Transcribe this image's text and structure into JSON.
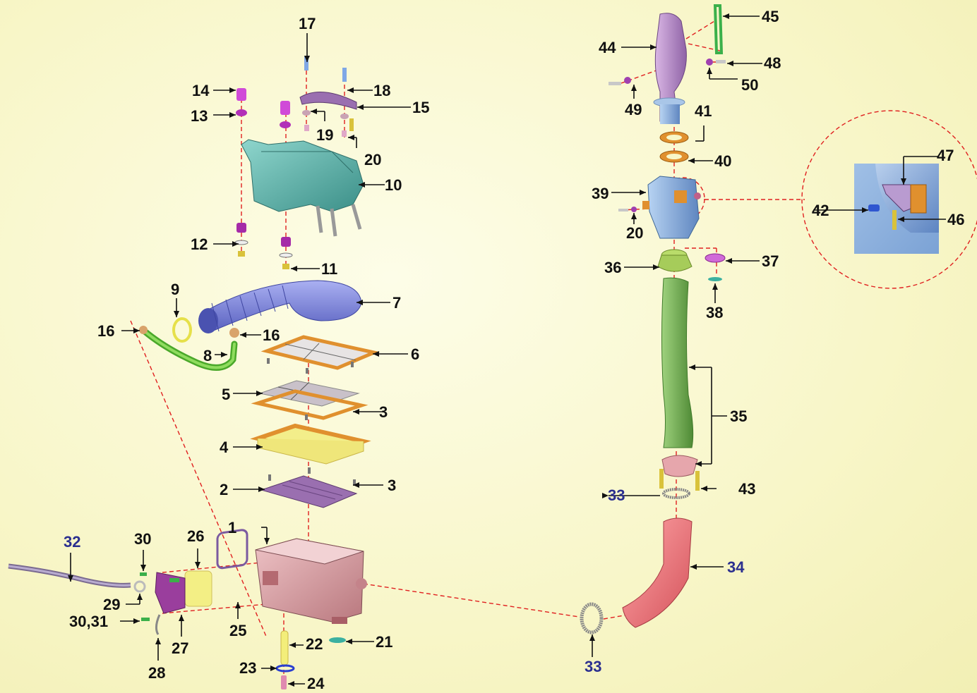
{
  "colors": {
    "background": "#f8f6c8",
    "callout_text": "#111111",
    "callout_blue": "#2b2f8f",
    "dashed_guide": "#e02020",
    "airbox": "#d9a3a8",
    "cover": "#5fb7ae",
    "duct_blue": "#7f86e0",
    "hose_green": "#6cbf3a",
    "frame_orange": "#e0902e",
    "filter_yellow": "#f3ee8a",
    "tray_purple": "#9a6fb0",
    "snorkel_green": "#6aa34a",
    "intake_pink": "#f07a7f",
    "throttle_blue": "#8fb4e0",
    "top_duct_purple": "#b98cc8"
  },
  "callouts": {
    "c1": "1",
    "c2": "2",
    "c3a": "3",
    "c3b": "3",
    "c4": "4",
    "c5": "5",
    "c6": "6",
    "c7": "7",
    "c8": "8",
    "c9": "9",
    "c10": "10",
    "c11": "11",
    "c12": "12",
    "c13": "13",
    "c14": "14",
    "c15": "15",
    "c16a": "16",
    "c16b": "16",
    "c17": "17",
    "c18": "18",
    "c19": "19",
    "c20a": "20",
    "c20b": "20",
    "c21": "21",
    "c22": "22",
    "c23": "23",
    "c24": "24",
    "c25": "25",
    "c26": "26",
    "c27": "27",
    "c28": "28",
    "c29": "29",
    "c30": "30",
    "c3031": "30,31",
    "c32": "32",
    "c33a": "33",
    "c33b": "33",
    "c34": "34",
    "c35": "35",
    "c36": "36",
    "c37": "37",
    "c38": "38",
    "c39": "39",
    "c40": "40",
    "c41": "41",
    "c42": "42",
    "c43": "43",
    "c44": "44",
    "c45": "45",
    "c46": "46",
    "c47": "47",
    "c48": "48",
    "c49": "49",
    "c50": "50"
  }
}
